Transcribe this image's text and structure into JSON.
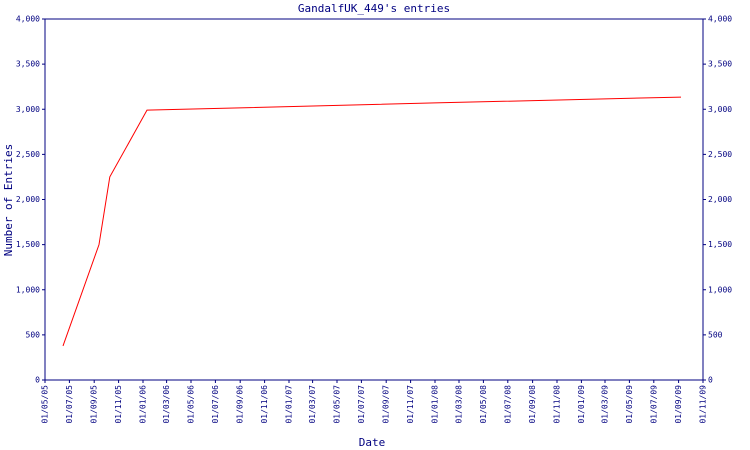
{
  "chart_data": {
    "type": "line",
    "title": "GandalfUK_449's entries",
    "x_label": "Date",
    "y_label": "Number of Entries",
    "series": [
      {
        "name": "entries",
        "color": "#ff0000",
        "x": [
          "15/06/05",
          "13/09/05",
          "10/10/05",
          "11/01/06",
          "01/01/08",
          "07/09/09"
        ],
        "values": [
          377,
          1500,
          2250,
          2990,
          3070,
          3135
        ]
      }
    ],
    "xlim": [
      "01/05/05",
      "01/11/09"
    ],
    "xticks": [
      "01/05/05",
      "01/07/05",
      "01/09/05",
      "01/11/05",
      "01/01/06",
      "01/03/06",
      "01/05/06",
      "01/07/06",
      "01/09/06",
      "01/11/06",
      "01/01/07",
      "01/03/07",
      "01/05/07",
      "01/07/07",
      "01/09/07",
      "01/11/07",
      "01/01/08",
      "01/03/08",
      "01/05/08",
      "01/07/08",
      "01/09/08",
      "01/11/08",
      "01/01/09",
      "01/03/09",
      "01/05/09",
      "01/07/09",
      "01/09/09",
      "01/11/09"
    ],
    "ylim": [
      0,
      4000
    ],
    "yticks": [
      0,
      500,
      {
        "value": 1000,
        "label": "1,000"
      },
      {
        "value": 1500,
        "label": "1,500"
      },
      {
        "value": 2000,
        "label": "2,000"
      },
      {
        "value": 2500,
        "label": "2,500"
      },
      {
        "value": 3000,
        "label": "3,000"
      },
      {
        "value": 3500,
        "label": "3,500"
      },
      {
        "value": 4000,
        "label": "4,000"
      }
    ],
    "right_axis_labels": true
  }
}
